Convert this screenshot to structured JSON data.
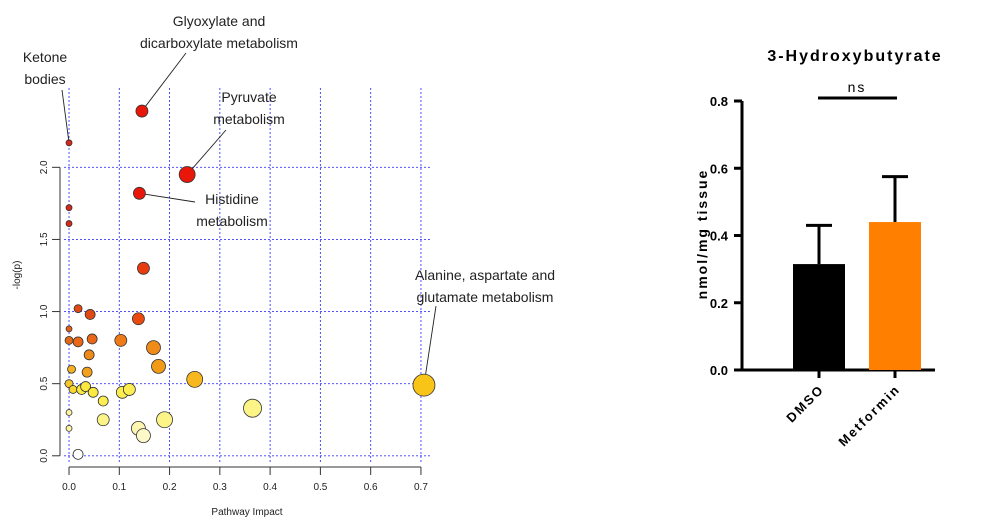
{
  "chart_data": [
    {
      "type": "scatter",
      "title": "",
      "xlabel": "Pathway Impact",
      "ylabel": "-log(p)",
      "xlim": [
        -0.01,
        0.72
      ],
      "ylim": [
        -0.05,
        2.55
      ],
      "x_ticks": [
        "0.0",
        "0.1",
        "0.2",
        "0.3",
        "0.4",
        "0.5",
        "0.6",
        "0.7"
      ],
      "y_ticks": [
        "0.0",
        "0.5",
        "1.0",
        "1.5",
        "2.0"
      ],
      "grid": true,
      "points": [
        {
          "x": 0.0,
          "y": 2.17,
          "size": 3,
          "color": "#d7281a"
        },
        {
          "x": 0.145,
          "y": 2.39,
          "size": 6,
          "color": "#e8170a"
        },
        {
          "x": 0.235,
          "y": 1.95,
          "size": 8,
          "color": "#e8170a"
        },
        {
          "x": 0.14,
          "y": 1.82,
          "size": 6,
          "color": "#e8170a"
        },
        {
          "x": 0.0,
          "y": 1.72,
          "size": 3,
          "color": "#d7281a"
        },
        {
          "x": 0.0,
          "y": 1.61,
          "size": 3,
          "color": "#d7281a"
        },
        {
          "x": 0.148,
          "y": 1.3,
          "size": 6,
          "color": "#e83c10"
        },
        {
          "x": 0.018,
          "y": 1.02,
          "size": 4,
          "color": "#e04a12"
        },
        {
          "x": 0.042,
          "y": 0.98,
          "size": 5,
          "color": "#e04a12"
        },
        {
          "x": 0.138,
          "y": 0.95,
          "size": 6,
          "color": "#e84a10"
        },
        {
          "x": 0.0,
          "y": 0.88,
          "size": 3,
          "color": "#e06018"
        },
        {
          "x": 0.0,
          "y": 0.8,
          "size": 4,
          "color": "#e06818"
        },
        {
          "x": 0.018,
          "y": 0.79,
          "size": 5,
          "color": "#e86818"
        },
        {
          "x": 0.046,
          "y": 0.81,
          "size": 5,
          "color": "#e86818"
        },
        {
          "x": 0.103,
          "y": 0.8,
          "size": 6,
          "color": "#ee7a18"
        },
        {
          "x": 0.04,
          "y": 0.7,
          "size": 5,
          "color": "#ee8a1a"
        },
        {
          "x": 0.168,
          "y": 0.75,
          "size": 7,
          "color": "#f08a18"
        },
        {
          "x": 0.005,
          "y": 0.6,
          "size": 4,
          "color": "#f4b020"
        },
        {
          "x": 0.036,
          "y": 0.58,
          "size": 5,
          "color": "#f4a01c"
        },
        {
          "x": 0.178,
          "y": 0.62,
          "size": 7,
          "color": "#f09a18"
        },
        {
          "x": 0.0,
          "y": 0.5,
          "size": 4,
          "color": "#f6c828"
        },
        {
          "x": 0.008,
          "y": 0.46,
          "size": 4,
          "color": "#f8d830"
        },
        {
          "x": 0.025,
          "y": 0.46,
          "size": 5,
          "color": "#fbe840"
        },
        {
          "x": 0.033,
          "y": 0.48,
          "size": 5,
          "color": "#fbe840"
        },
        {
          "x": 0.048,
          "y": 0.44,
          "size": 5,
          "color": "#fbe840"
        },
        {
          "x": 0.068,
          "y": 0.38,
          "size": 5,
          "color": "#fcee50"
        },
        {
          "x": 0.106,
          "y": 0.44,
          "size": 6,
          "color": "#fcee50"
        },
        {
          "x": 0.12,
          "y": 0.46,
          "size": 6,
          "color": "#fcee50"
        },
        {
          "x": 0.25,
          "y": 0.53,
          "size": 8,
          "color": "#f6b81e"
        },
        {
          "x": 0.706,
          "y": 0.49,
          "size": 11,
          "color": "#f8c418"
        },
        {
          "x": 0.0,
          "y": 0.3,
          "size": 3,
          "color": "#fdf6a0"
        },
        {
          "x": 0.0,
          "y": 0.19,
          "size": 3,
          "color": "#fdf6a0"
        },
        {
          "x": 0.068,
          "y": 0.25,
          "size": 6,
          "color": "#fdf488"
        },
        {
          "x": 0.138,
          "y": 0.19,
          "size": 7,
          "color": "#fdf6b0"
        },
        {
          "x": 0.148,
          "y": 0.14,
          "size": 7,
          "color": "#fdf8c8"
        },
        {
          "x": 0.19,
          "y": 0.25,
          "size": 8,
          "color": "#fdf488"
        },
        {
          "x": 0.365,
          "y": 0.33,
          "size": 9,
          "color": "#fdf488"
        },
        {
          "x": 0.018,
          "y": 0.01,
          "size": 5,
          "color": "#ffffff"
        }
      ],
      "annotations": [
        {
          "lines": [
            "Ketone",
            "bodies"
          ],
          "x": 0.0,
          "y": 2.17
        },
        {
          "lines": [
            "Glyoxylate and",
            "dicarboxylate metabolism"
          ],
          "x": 0.145,
          "y": 2.39
        },
        {
          "lines": [
            "Pyruvate",
            "metabolism"
          ],
          "x": 0.235,
          "y": 1.95
        },
        {
          "lines": [
            "Histidine",
            "metabolism"
          ],
          "x": 0.14,
          "y": 1.82
        },
        {
          "lines": [
            "Alanine, aspartate and",
            "glutamate metabolism"
          ],
          "x": 0.706,
          "y": 0.49
        }
      ]
    },
    {
      "type": "bar",
      "title": "3-Hydroxybutyrate",
      "xlabel": "",
      "ylabel": "nmol/mg tissue",
      "categories": [
        "DMSO",
        "Metformin"
      ],
      "values": [
        0.315,
        0.44
      ],
      "errors": [
        0.115,
        0.135
      ],
      "colors": [
        "#000000",
        "#ff8000"
      ],
      "ylim": [
        0,
        0.8
      ],
      "y_ticks": [
        "0.0",
        "0.2",
        "0.4",
        "0.6",
        "0.8"
      ],
      "significance": "ns"
    }
  ]
}
